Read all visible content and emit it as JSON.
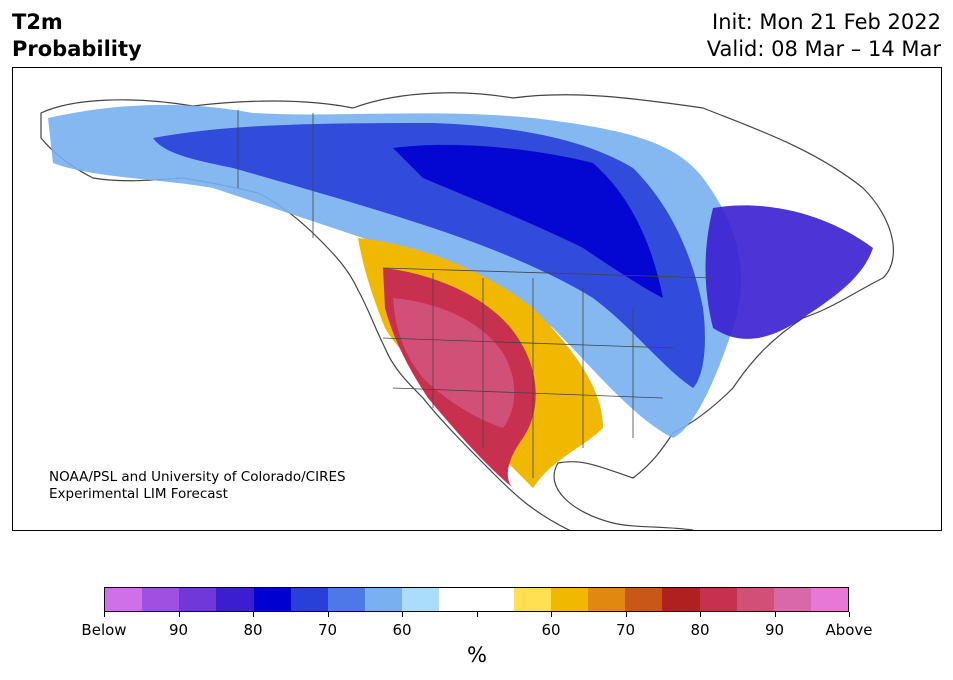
{
  "title": {
    "line1": "T2m",
    "line2": "Probability"
  },
  "dates": {
    "init": "Init: Mon 21 Feb 2022",
    "valid": "Valid: 08 Mar – 14 Mar"
  },
  "credit": {
    "line1": "NOAA/PSL and University of Colorado/CIRES",
    "line2": "Experimental LIM Forecast"
  },
  "colorbar": {
    "colors": [
      "#d070e8",
      "#a050e0",
      "#7038d8",
      "#3a1ed0",
      "#0000d0",
      "#2840d8",
      "#4e78e8",
      "#78b0f0",
      "#aadcfc",
      "#ffffff",
      "#ffffff",
      "#ffe050",
      "#f0b800",
      "#e08810",
      "#c85818",
      "#b02020",
      "#c83050",
      "#d05078",
      "#d868a8",
      "#e878d8"
    ],
    "labels": [
      "Below",
      "90",
      "80",
      "70",
      "60",
      "",
      "60",
      "70",
      "80",
      "90",
      "Above"
    ],
    "unit": "%"
  }
}
